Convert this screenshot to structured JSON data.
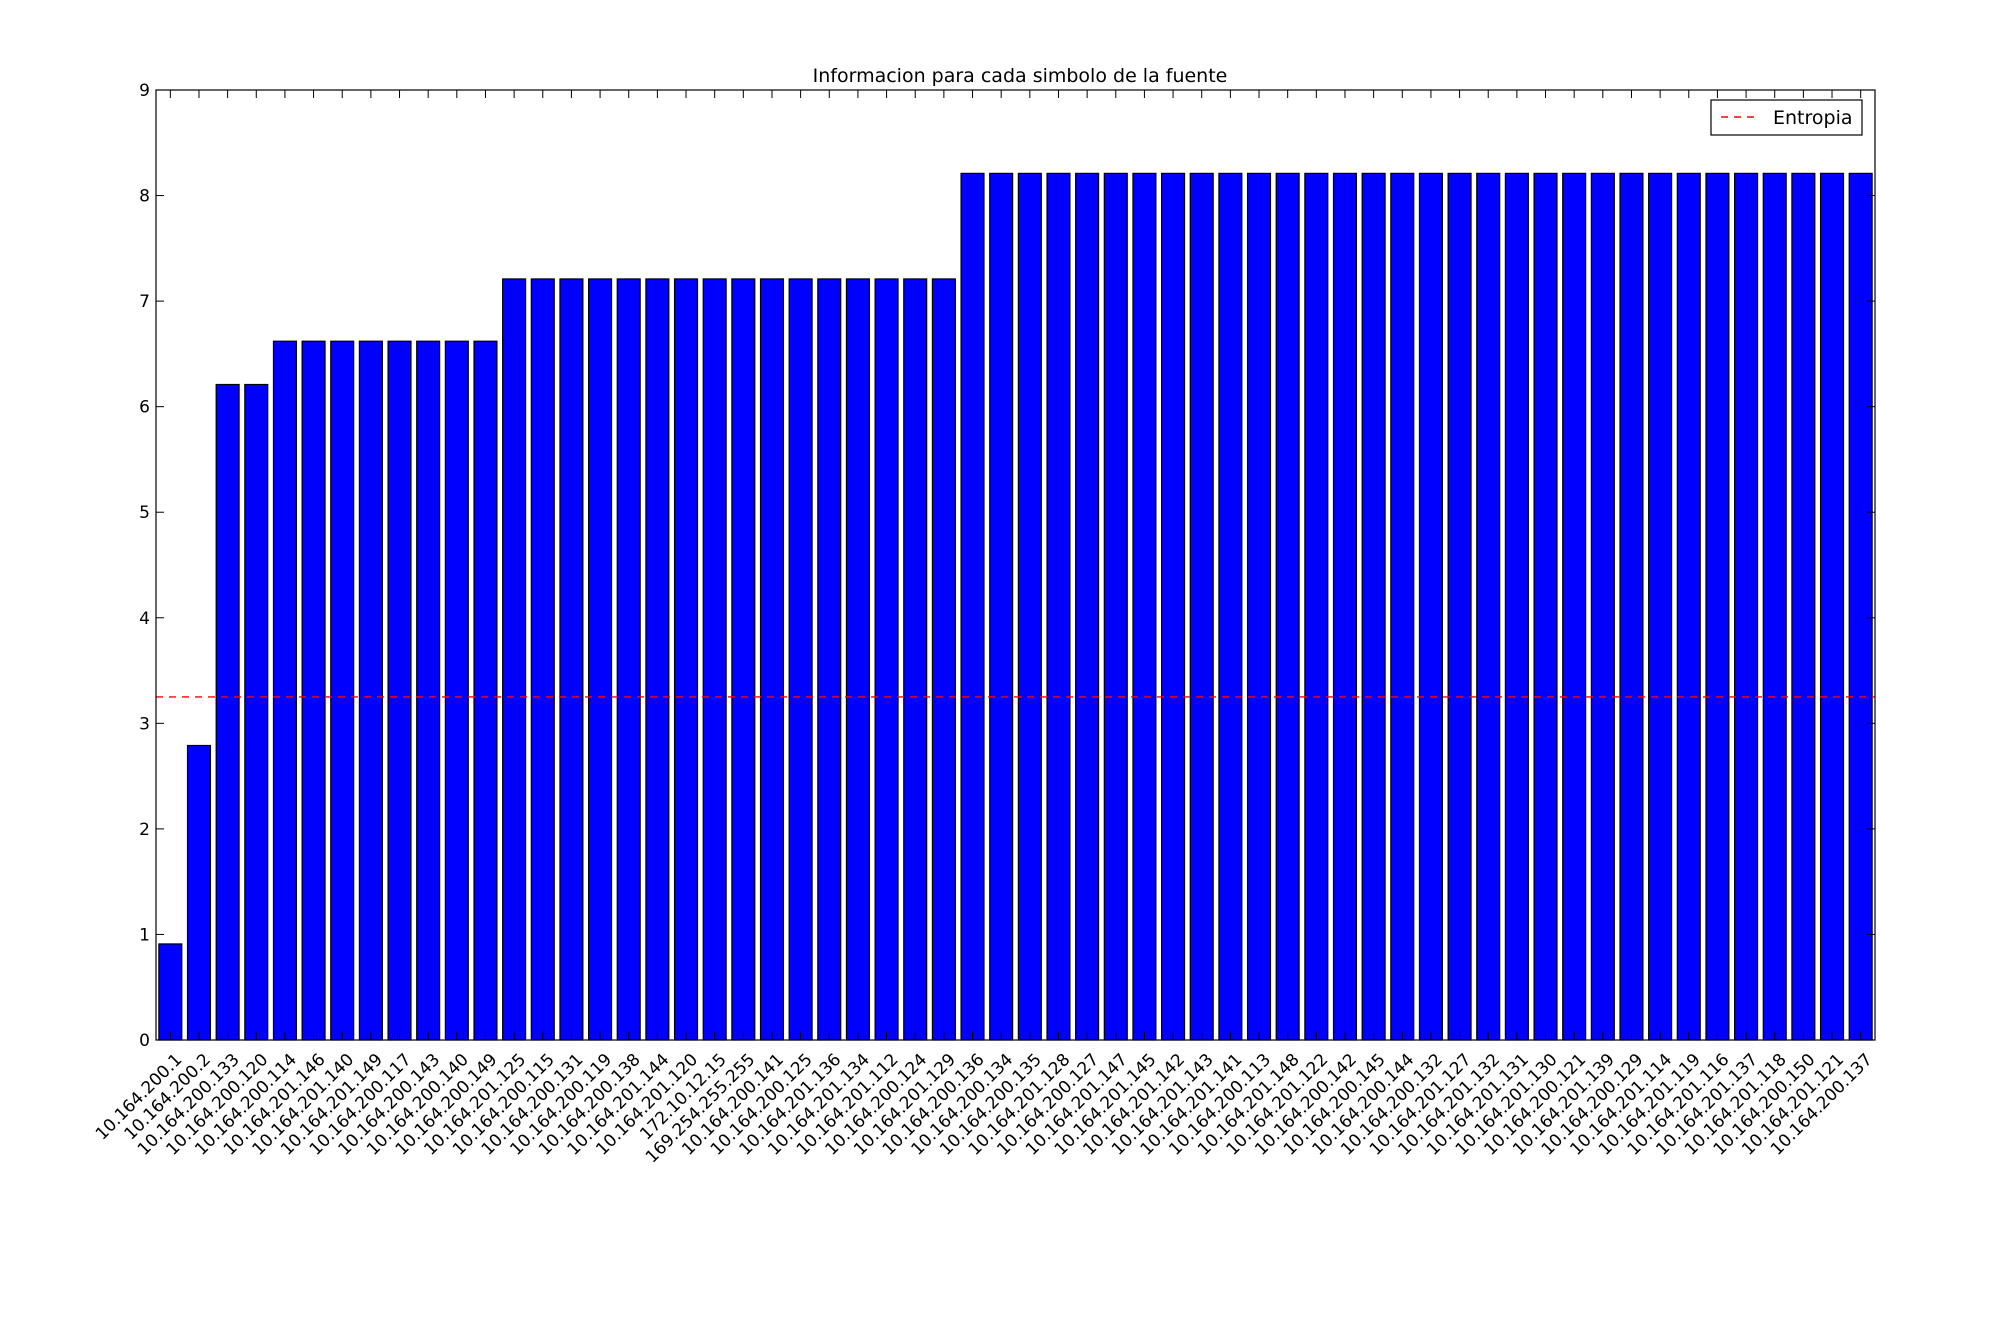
{
  "chart_data": {
    "type": "bar",
    "title": "Informacion para cada simbolo de la fuente",
    "xlabel": "",
    "ylabel": "",
    "ylim": [
      0,
      9
    ],
    "yticks": [
      "0",
      "1",
      "2",
      "3",
      "4",
      "5",
      "6",
      "7",
      "8",
      "9"
    ],
    "grid": false,
    "bar_color": "#0000ff",
    "categories": [
      "10.164.200.1",
      "10.164.200.2",
      "10.164.200.133",
      "10.164.200.120",
      "10.164.200.114",
      "10.164.201.146",
      "10.164.201.140",
      "10.164.201.149",
      "10.164.200.117",
      "10.164.200.143",
      "10.164.200.140",
      "10.164.200.149",
      "10.164.201.125",
      "10.164.200.115",
      "10.164.200.131",
      "10.164.200.119",
      "10.164.200.138",
      "10.164.201.144",
      "10.164.201.120",
      "172.10.12.15",
      "169.254.255.255",
      "10.164.200.141",
      "10.164.200.125",
      "10.164.201.136",
      "10.164.201.134",
      "10.164.201.112",
      "10.164.200.124",
      "10.164.201.129",
      "10.164.200.136",
      "10.164.200.134",
      "10.164.200.135",
      "10.164.201.128",
      "10.164.200.127",
      "10.164.201.147",
      "10.164.201.145",
      "10.164.201.142",
      "10.164.201.143",
      "10.164.201.141",
      "10.164.200.113",
      "10.164.201.148",
      "10.164.201.122",
      "10.164.200.142",
      "10.164.200.145",
      "10.164.200.144",
      "10.164.200.132",
      "10.164.201.127",
      "10.164.201.132",
      "10.164.201.131",
      "10.164.201.130",
      "10.164.200.121",
      "10.164.201.139",
      "10.164.200.129",
      "10.164.201.114",
      "10.164.201.119",
      "10.164.201.116",
      "10.164.201.137",
      "10.164.201.118",
      "10.164.200.150",
      "10.164.201.121",
      "10.164.200.137"
    ],
    "values": [
      0.91,
      2.79,
      6.21,
      6.21,
      6.62,
      6.62,
      6.62,
      6.62,
      6.62,
      6.62,
      6.62,
      6.62,
      7.21,
      7.21,
      7.21,
      7.21,
      7.21,
      7.21,
      7.21,
      7.21,
      7.21,
      7.21,
      7.21,
      7.21,
      7.21,
      7.21,
      7.21,
      7.21,
      8.21,
      8.21,
      8.21,
      8.21,
      8.21,
      8.21,
      8.21,
      8.21,
      8.21,
      8.21,
      8.21,
      8.21,
      8.21,
      8.21,
      8.21,
      8.21,
      8.21,
      8.21,
      8.21,
      8.21,
      8.21,
      8.21,
      8.21,
      8.21,
      8.21,
      8.21,
      8.21,
      8.21,
      8.21,
      8.21,
      8.21,
      8.21
    ],
    "reference_line": {
      "name": "Entropia",
      "value": 3.25,
      "color": "#ff0000",
      "style": "dashed"
    },
    "legend": {
      "placement": "top-right",
      "entries": [
        "Entropia"
      ]
    }
  }
}
